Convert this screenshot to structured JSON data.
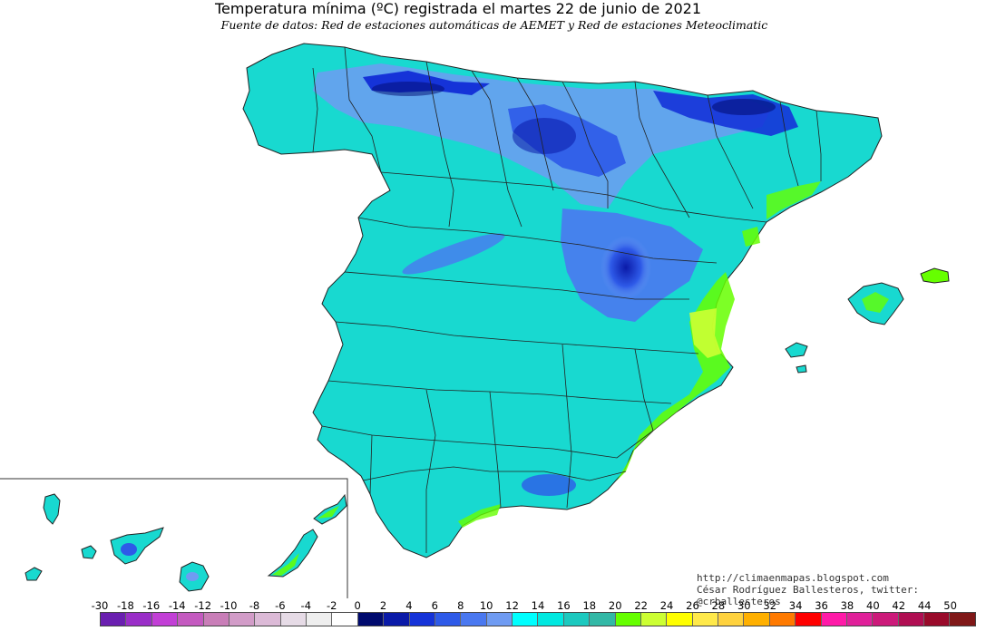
{
  "map": {
    "title": "Temperatura mínima (ºC) registrada el martes 22 de junio de 2021",
    "subtitle": "Fuente de datos: Red de estaciones automáticas de AEMET y Red de estaciones Meteoclimatic"
  },
  "credits": {
    "blog": "http://climaenmapas.blogspot.com",
    "author": "César Rodríguez Ballesteros, twitter: @crballesteros"
  },
  "legend": {
    "labels": [
      "-30",
      "-18",
      "-16",
      "-14",
      "-12",
      "-10",
      "-8",
      "-6",
      "-4",
      "-2",
      "0",
      "2",
      "4",
      "6",
      "8",
      "10",
      "12",
      "14",
      "16",
      "18",
      "20",
      "22",
      "24",
      "26",
      "28",
      "30",
      "32",
      "34",
      "36",
      "38",
      "40",
      "42",
      "44",
      "50"
    ],
    "colors": [
      "#6a1fb0",
      "#9a2ec8",
      "#c23fd6",
      "#c45ac0",
      "#c97eb8",
      "#d29cc8",
      "#dcbad7",
      "#e6dbe6",
      "#eeeeee",
      "#ffffff",
      "#000a6e",
      "#0a1aa8",
      "#1533d8",
      "#2e5ae8",
      "#4a78f0",
      "#6f9bf2",
      "#00ffff",
      "#00e8e0",
      "#1cc9bf",
      "#32b8a6",
      "#66ff00",
      "#ccff33",
      "#ffff00",
      "#ffe94a",
      "#ffd23e",
      "#ffb000",
      "#ff7a00",
      "#ff0000",
      "#ff1aa8",
      "#e0209a",
      "#cc1a7a",
      "#b00e52",
      "#990a2a",
      "#801818"
    ]
  }
}
